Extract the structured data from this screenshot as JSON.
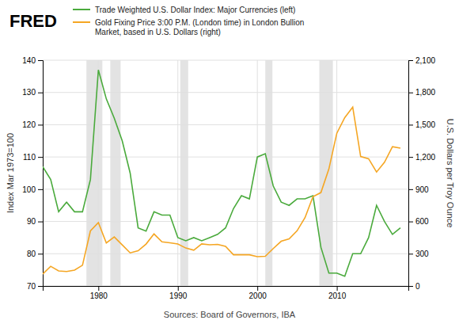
{
  "chart_data": {
    "type": "line",
    "title": "FRED",
    "ylabel": "Index Mar 1973=100",
    "y2label": "U.S. Dollars per Troy Ounce",
    "source": "Sources: Board of Governors, IBA",
    "x": [
      1973,
      1974,
      1975,
      1976,
      1977,
      1978,
      1979,
      1980,
      1981,
      1982,
      1983,
      1984,
      1985,
      1986,
      1987,
      1988,
      1989,
      1990,
      1991,
      1992,
      1993,
      1994,
      1995,
      1996,
      1997,
      1998,
      1999,
      2000,
      2001,
      2002,
      2003,
      2004,
      2005,
      2006,
      2007,
      2008,
      2009,
      2010,
      2011,
      2012,
      2013,
      2014,
      2015,
      2016,
      2017,
      2018
    ],
    "series": [
      {
        "name": "Trade Weighted U.S. Dollar Index: Major Currencies (left)",
        "color": "#4aaa3c",
        "axis": "y",
        "values": [
          107,
          103,
          93,
          96,
          93,
          93,
          103,
          137,
          128,
          122,
          115,
          105,
          88,
          87,
          93,
          92,
          92,
          85,
          84,
          85,
          84,
          85,
          86,
          88,
          94,
          98,
          97,
          110,
          111,
          101,
          96,
          95,
          97,
          97,
          98,
          82,
          74,
          74,
          73,
          80,
          80,
          85,
          95,
          90,
          86,
          88
        ]
      },
      {
        "name": "Gold Fixing Price 3:00 P.M. (London time) in London Bullion\nMarket, based in U.S. Dollars (right)",
        "color": "#f5a623",
        "axis": "y2",
        "values": [
          112,
          183,
          140,
          134,
          147,
          193,
          512,
          590,
          400,
          456,
          382,
          308,
          327,
          390,
          484,
          410,
          401,
          391,
          353,
          333,
          391,
          383,
          387,
          369,
          290,
          290,
          290,
          273,
          276,
          348,
          416,
          438,
          513,
          636,
          831,
          869,
          1088,
          1421,
          1566,
          1664,
          1204,
          1183,
          1060,
          1151,
          1296,
          1282
        ]
      }
    ],
    "shaded_regions": [
      [
        1978.5,
        1980.5
      ],
      [
        1981.5,
        1982.8
      ],
      [
        1990.3,
        1991.3
      ],
      [
        2001.0,
        2001.9
      ],
      [
        2007.8,
        2009.5
      ]
    ],
    "xlim": [
      1973,
      2019
    ],
    "xticks": [
      1980,
      1990,
      2000,
      2010
    ],
    "ylim": [
      70,
      140
    ],
    "yticks": [
      70,
      80,
      90,
      100,
      110,
      120,
      130,
      140
    ],
    "y2lim": [
      0,
      2100
    ],
    "y2ticks": [
      0,
      300,
      600,
      900,
      {
        "value": 1200,
        "label": "1,200"
      },
      {
        "value": 1500,
        "label": "1,500"
      },
      {
        "value": 1800,
        "label": "1,800"
      },
      {
        "value": 2100,
        "label": "2,100"
      }
    ],
    "grid": true,
    "legend": "top"
  }
}
